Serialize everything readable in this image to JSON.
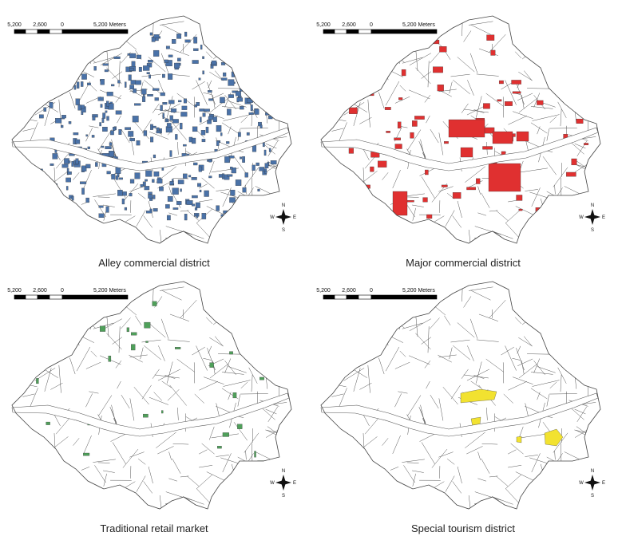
{
  "panels": [
    {
      "caption": "Alley commercial district",
      "scale_labels": [
        "5,200",
        "2,600",
        "0",
        "5,200 Meters"
      ],
      "compass": {
        "n": "N",
        "s": "S",
        "w": "W",
        "e": "E"
      }
    },
    {
      "caption": "Major commercial district",
      "scale_labels": [
        "5,200",
        "2,600",
        "0",
        "5,200 Meters"
      ],
      "compass": {
        "n": "N",
        "s": "S",
        "w": "W",
        "e": "E"
      }
    },
    {
      "caption": "Traditional retail market",
      "scale_labels": [
        "5,200",
        "2,600",
        "0",
        "5,200 Meters"
      ],
      "compass": {
        "n": "N",
        "s": "S",
        "w": "W",
        "e": "E"
      }
    },
    {
      "caption": "Special tourism district",
      "scale_labels": [
        "5,200",
        "2,600",
        "0",
        "5,200 Meters"
      ],
      "compass": {
        "n": "N",
        "s": "S",
        "w": "W",
        "e": "E"
      }
    }
  ]
}
